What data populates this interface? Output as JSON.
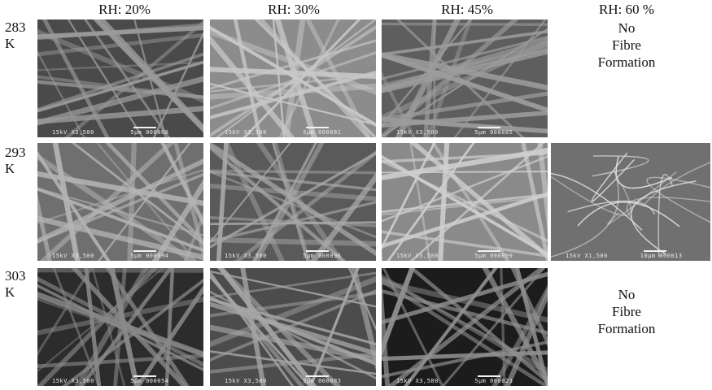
{
  "columns": [
    {
      "label": "RH: 20%"
    },
    {
      "label": "RH: 30%"
    },
    {
      "label": "RH: 45%"
    },
    {
      "label": "RH: 60 %"
    }
  ],
  "rows": [
    {
      "temp": "283",
      "unit": "K"
    },
    {
      "temp": "293",
      "unit": "K"
    },
    {
      "temp": "303",
      "unit": "K"
    }
  ],
  "notes": {
    "r1": [
      "No",
      "Fibre",
      "Formation"
    ],
    "r3": [
      "No",
      "Fibre",
      "Formation"
    ]
  },
  "images": [
    {
      "id": "r1c1",
      "info": "15kV X3,500",
      "scale": "5μm 000068",
      "bg": "#4a4a4a",
      "fiber": "#9a9a9a",
      "seed": 11
    },
    {
      "id": "r1c2",
      "info": "15kV X3,500",
      "scale": "5μm 000081",
      "bg": "#8c8c8c",
      "fiber": "#c8c8c8",
      "seed": 23
    },
    {
      "id": "r1c3",
      "info": "15kV X3,500",
      "scale": "5μm 000085",
      "bg": "#5e5e5e",
      "fiber": "#9c9c9c",
      "seed": 37
    },
    {
      "id": "r2c1",
      "info": "15kV X3,500",
      "scale": "5μm 000094",
      "bg": "#6f6f6f",
      "fiber": "#b4b4b4",
      "seed": 41
    },
    {
      "id": "r2c2",
      "info": "15kV X3,500",
      "scale": "5μm 000096",
      "bg": "#5a5a5a",
      "fiber": "#a8a8a8",
      "seed": 53
    },
    {
      "id": "r2c3",
      "info": "15kV X3,500",
      "scale": "5μm 000099",
      "bg": "#8a8a8a",
      "fiber": "#cfcfcf",
      "seed": 67
    },
    {
      "id": "r2c4",
      "info": "15kV X1,500",
      "scale": "10μm 000013",
      "bg": "#707070",
      "fiber": "#e0e0e0",
      "seed": 71
    },
    {
      "id": "r3c1",
      "info": "15kV X3,500",
      "scale": "5μm 000054",
      "bg": "#2c2c2c",
      "fiber": "#8a8a8a",
      "seed": 83
    },
    {
      "id": "r3c2",
      "info": "15kV X3,500",
      "scale": "5μm 000083",
      "bg": "#4c4c4c",
      "fiber": "#a6a6a6",
      "seed": 97
    },
    {
      "id": "r3c3",
      "info": "15kV X3,500",
      "scale": "5μm 000023",
      "bg": "#1c1c1c",
      "fiber": "#909090",
      "seed": 103
    }
  ]
}
